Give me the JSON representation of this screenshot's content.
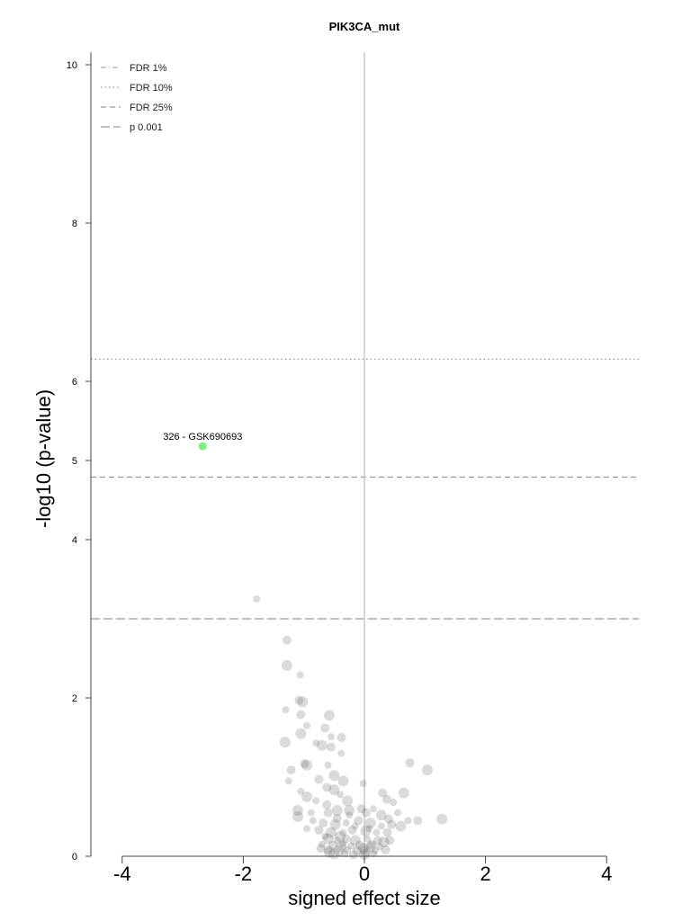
{
  "chart_data": {
    "type": "scatter",
    "title": "PIK3CA_mut",
    "xlabel": "signed effect size",
    "ylabel": "-log10 (p-value)",
    "xlim": [
      -4.5,
      4.5
    ],
    "ylim": [
      0,
      10
    ],
    "x_ticks": [
      -4,
      -2,
      0,
      2,
      4
    ],
    "y_ticks": [
      0,
      2,
      4,
      5,
      6,
      8,
      10
    ],
    "x_tick_labels": [
      "-4",
      "-2",
      "0",
      "2",
      "4"
    ],
    "y_tick_labels": [
      "0",
      "2",
      "4",
      "5",
      "6",
      "8",
      "10"
    ],
    "grid": false,
    "legend_position": "top-left",
    "thresholds": [
      {
        "name": "FDR 1%",
        "y": null,
        "style": "dashdot",
        "color": "#aaaaaa"
      },
      {
        "name": "FDR 10%",
        "y": 6.28,
        "style": "dotted",
        "color": "#999999"
      },
      {
        "name": "FDR 25%",
        "y": 4.79,
        "style": "dashed",
        "color": "#999999"
      },
      {
        "name": "p 0.001",
        "y": 3.0,
        "style": "longdash",
        "color": "#999999"
      }
    ],
    "highlight": {
      "x": -2.67,
      "y": 5.18,
      "label": "326 - GSK690693",
      "color": "#7fef7f"
    },
    "points": [
      [
        -1.78,
        3.25
      ],
      [
        -1.28,
        2.73
      ],
      [
        -1.28,
        2.41
      ],
      [
        -1.06,
        2.29
      ],
      [
        -1.08,
        1.97
      ],
      [
        -1.02,
        1.95
      ],
      [
        -1.3,
        1.85
      ],
      [
        -1.05,
        1.79
      ],
      [
        -0.58,
        1.78
      ],
      [
        -0.95,
        1.65
      ],
      [
        -0.65,
        1.62
      ],
      [
        -1.05,
        1.55
      ],
      [
        -0.55,
        1.51
      ],
      [
        -0.38,
        1.5
      ],
      [
        -1.31,
        1.44
      ],
      [
        -0.8,
        1.43
      ],
      [
        -0.55,
        1.38
      ],
      [
        -0.7,
        1.4
      ],
      [
        -0.38,
        1.3
      ],
      [
        -0.99,
        1.17
      ],
      [
        -0.95,
        1.15
      ],
      [
        -0.6,
        1.15
      ],
      [
        -1.21,
        1.09
      ],
      [
        -0.5,
        1.02
      ],
      [
        -1.25,
        0.95
      ],
      [
        -0.75,
        0.97
      ],
      [
        -0.35,
        0.95
      ],
      [
        -0.02,
        0.92
      ],
      [
        0.75,
        1.18
      ],
      [
        1.04,
        1.09
      ],
      [
        -1.05,
        0.82
      ],
      [
        -0.62,
        0.87
      ],
      [
        -0.5,
        0.84
      ],
      [
        -0.4,
        0.78
      ],
      [
        0.3,
        0.8
      ],
      [
        0.65,
        0.8
      ],
      [
        0.48,
        0.68
      ],
      [
        0.37,
        0.72
      ],
      [
        -0.95,
        0.75
      ],
      [
        -0.8,
        0.7
      ],
      [
        -0.62,
        0.65
      ],
      [
        -0.28,
        0.7
      ],
      [
        0.15,
        0.6
      ],
      [
        -0.05,
        0.6
      ],
      [
        -1.1,
        0.58
      ],
      [
        -0.88,
        0.55
      ],
      [
        -0.6,
        0.55
      ],
      [
        -0.45,
        0.58
      ],
      [
        -0.25,
        0.52
      ],
      [
        0.03,
        0.55
      ],
      [
        0.28,
        0.52
      ],
      [
        0.55,
        0.55
      ],
      [
        0.88,
        0.45
      ],
      [
        1.28,
        0.47
      ],
      [
        0.72,
        0.45
      ],
      [
        0.4,
        0.47
      ],
      [
        -1.1,
        0.5
      ],
      [
        -0.85,
        0.45
      ],
      [
        -0.68,
        0.42
      ],
      [
        -0.48,
        0.4
      ],
      [
        -0.3,
        0.42
      ],
      [
        -0.1,
        0.45
      ],
      [
        0.1,
        0.42
      ],
      [
        0.28,
        0.38
      ],
      [
        0.45,
        0.4
      ],
      [
        0.6,
        0.38
      ],
      [
        -0.95,
        0.35
      ],
      [
        -0.75,
        0.33
      ],
      [
        -0.55,
        0.3
      ],
      [
        -0.35,
        0.3
      ],
      [
        -0.2,
        0.33
      ],
      [
        0.02,
        0.32
      ],
      [
        0.2,
        0.3
      ],
      [
        0.38,
        0.3
      ],
      [
        -0.6,
        0.22
      ],
      [
        -0.45,
        0.2
      ],
      [
        -0.3,
        0.22
      ],
      [
        -0.15,
        0.2
      ],
      [
        0.05,
        0.22
      ],
      [
        0.22,
        0.2
      ],
      [
        0.32,
        0.18
      ],
      [
        -0.7,
        0.15
      ],
      [
        -0.52,
        0.14
      ],
      [
        -0.38,
        0.12
      ],
      [
        -0.22,
        0.13
      ],
      [
        -0.08,
        0.14
      ],
      [
        0.1,
        0.12
      ],
      [
        0.25,
        0.12
      ],
      [
        -0.6,
        0.08
      ],
      [
        -0.42,
        0.07
      ],
      [
        -0.28,
        0.08
      ],
      [
        -0.12,
        0.07
      ],
      [
        0.02,
        0.06
      ],
      [
        0.18,
        0.07
      ],
      [
        0.35,
        0.08
      ],
      [
        -0.5,
        0.03
      ],
      [
        -0.32,
        0.03
      ],
      [
        -0.18,
        0.02
      ],
      [
        0.0,
        0.02
      ],
      [
        0.15,
        0.03
      ],
      [
        -0.72,
        0.1
      ],
      [
        -0.4,
        0.25
      ],
      [
        -0.15,
        0.38
      ],
      [
        0.12,
        0.15
      ],
      [
        -0.25,
        0.58
      ],
      [
        -0.65,
        0.25
      ],
      [
        0.42,
        0.2
      ],
      [
        -0.02,
        0.1
      ],
      [
        0.08,
        0.35
      ],
      [
        -0.45,
        0.48
      ],
      [
        -0.58,
        0.05
      ],
      [
        -0.35,
        0.16
      ]
    ]
  }
}
